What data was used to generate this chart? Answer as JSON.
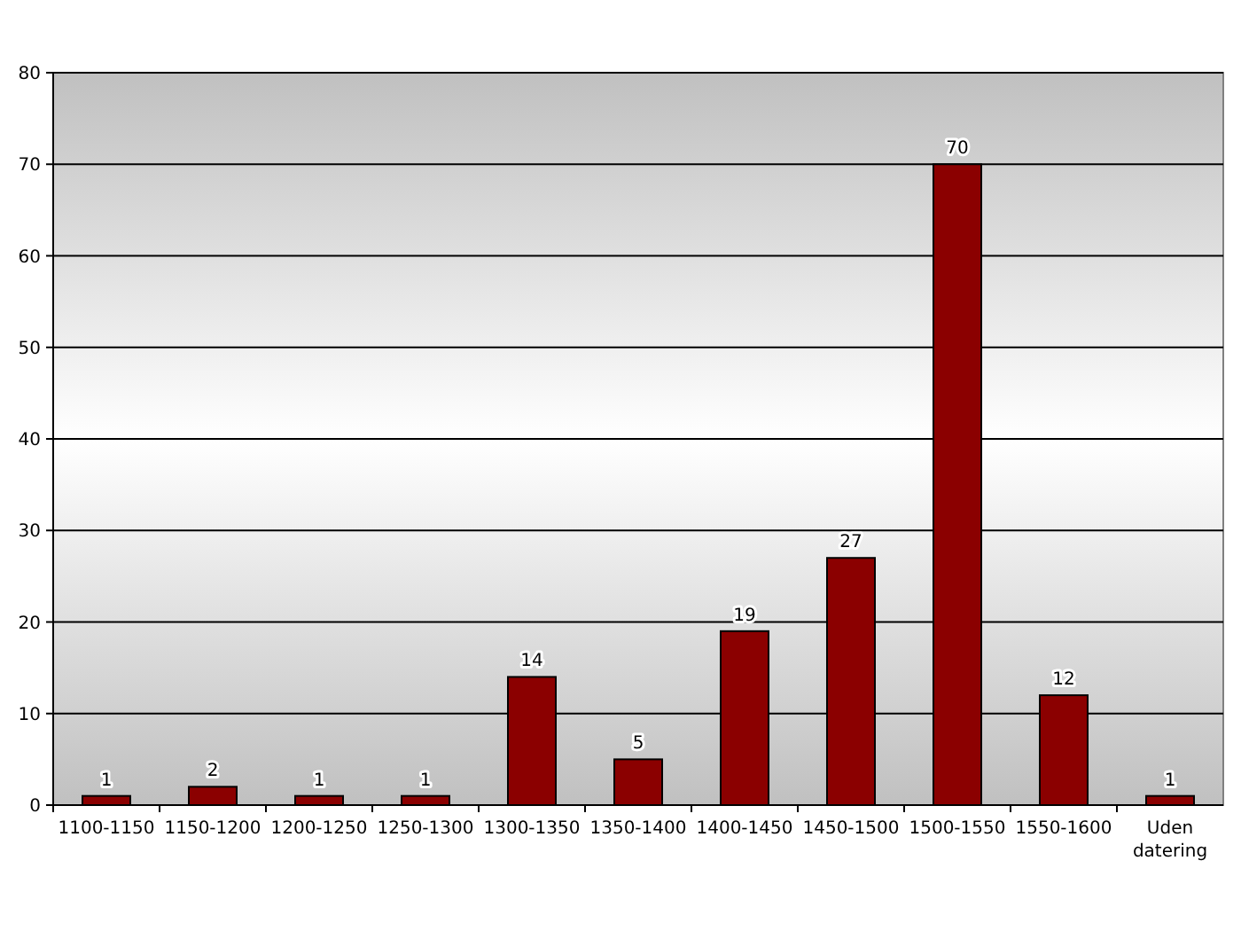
{
  "chart_data": {
    "type": "bar",
    "categories": [
      "1100-1150",
      "1150-1200",
      "1200-1250",
      "1250-1300",
      "1300-1350",
      "1350-1400",
      "1400-1450",
      "1450-1500",
      "1500-1550",
      "1550-1600",
      "Uden datering"
    ],
    "values": [
      1,
      2,
      1,
      1,
      14,
      5,
      19,
      27,
      70,
      12,
      1
    ],
    "color": "#8b0000",
    "ylim": [
      0,
      80
    ],
    "yticks": [
      0,
      10,
      20,
      30,
      40,
      50,
      60,
      70,
      80
    ],
    "grid": "y",
    "data_labels": true
  }
}
